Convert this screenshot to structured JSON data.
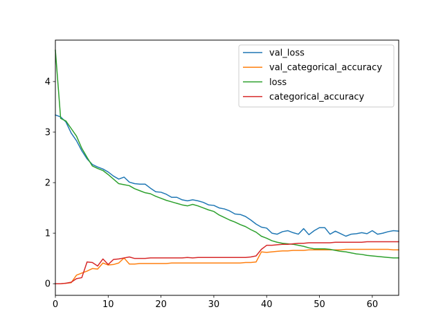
{
  "chart_data": {
    "type": "line",
    "title": "",
    "xlabel": "",
    "ylabel": "",
    "xlim": [
      0,
      65
    ],
    "ylim": [
      -0.23,
      4.82
    ],
    "xticks": [
      0,
      10,
      20,
      30,
      40,
      50,
      60
    ],
    "yticks": [
      0,
      1,
      2,
      3,
      4
    ],
    "grid": false,
    "legend_position": "upper right",
    "x": [
      0,
      1,
      2,
      3,
      4,
      5,
      6,
      7,
      8,
      9,
      10,
      11,
      12,
      13,
      14,
      15,
      16,
      17,
      18,
      19,
      20,
      21,
      22,
      23,
      24,
      25,
      26,
      27,
      28,
      29,
      30,
      31,
      32,
      33,
      34,
      35,
      36,
      37,
      38,
      39,
      40,
      41,
      42,
      43,
      44,
      45,
      46,
      47,
      48,
      49,
      50,
      51,
      52,
      53,
      54,
      55,
      56,
      57,
      58,
      59,
      60,
      61,
      62,
      63,
      64,
      65
    ],
    "series": [
      {
        "name": "val_loss",
        "color": "#1f77b4",
        "values": [
          3.34,
          3.3,
          3.2,
          2.98,
          2.83,
          2.63,
          2.47,
          2.36,
          2.31,
          2.27,
          2.21,
          2.13,
          2.07,
          2.11,
          2.01,
          1.98,
          1.97,
          1.97,
          1.89,
          1.82,
          1.81,
          1.77,
          1.71,
          1.71,
          1.66,
          1.64,
          1.66,
          1.64,
          1.61,
          1.56,
          1.55,
          1.5,
          1.48,
          1.44,
          1.38,
          1.37,
          1.33,
          1.26,
          1.18,
          1.12,
          1.1,
          1.0,
          0.98,
          1.03,
          1.05,
          1.01,
          0.98,
          1.09,
          0.97,
          1.05,
          1.11,
          1.11,
          0.98,
          1.04,
          0.99,
          0.94,
          0.98,
          0.99,
          1.01,
          0.99,
          1.05,
          0.98,
          1.0,
          1.03,
          1.05,
          1.04
        ]
      },
      {
        "name": "val_categorical_accuracy",
        "color": "#ff7f0e",
        "values": [
          0.0,
          0.0,
          0.01,
          0.02,
          0.17,
          0.21,
          0.25,
          0.3,
          0.29,
          0.41,
          0.37,
          0.38,
          0.41,
          0.51,
          0.39,
          0.39,
          0.4,
          0.4,
          0.4,
          0.4,
          0.4,
          0.4,
          0.41,
          0.41,
          0.41,
          0.41,
          0.41,
          0.41,
          0.41,
          0.41,
          0.41,
          0.41,
          0.41,
          0.41,
          0.41,
          0.41,
          0.42,
          0.42,
          0.43,
          0.63,
          0.62,
          0.63,
          0.64,
          0.65,
          0.65,
          0.66,
          0.66,
          0.66,
          0.67,
          0.67,
          0.67,
          0.67,
          0.67,
          0.67,
          0.67,
          0.68,
          0.68,
          0.68,
          0.68,
          0.68,
          0.68,
          0.68,
          0.68,
          0.68,
          0.67,
          0.67
        ]
      },
      {
        "name": "loss",
        "color": "#2ca02c",
        "values": [
          4.62,
          3.27,
          3.22,
          3.07,
          2.92,
          2.68,
          2.5,
          2.33,
          2.28,
          2.24,
          2.16,
          2.07,
          1.98,
          1.96,
          1.94,
          1.88,
          1.84,
          1.8,
          1.78,
          1.73,
          1.69,
          1.65,
          1.62,
          1.59,
          1.56,
          1.54,
          1.57,
          1.54,
          1.5,
          1.46,
          1.43,
          1.36,
          1.31,
          1.26,
          1.22,
          1.17,
          1.13,
          1.07,
          1.02,
          0.94,
          0.9,
          0.85,
          0.82,
          0.8,
          0.79,
          0.78,
          0.76,
          0.74,
          0.71,
          0.69,
          0.69,
          0.69,
          0.68,
          0.66,
          0.64,
          0.63,
          0.61,
          0.59,
          0.58,
          0.56,
          0.55,
          0.54,
          0.53,
          0.52,
          0.51,
          0.51
        ]
      },
      {
        "name": "categorical_accuracy",
        "color": "#d62728",
        "values": [
          0.0,
          0.0,
          0.01,
          0.03,
          0.1,
          0.12,
          0.43,
          0.42,
          0.35,
          0.49,
          0.38,
          0.48,
          0.49,
          0.51,
          0.53,
          0.5,
          0.5,
          0.5,
          0.51,
          0.51,
          0.51,
          0.51,
          0.51,
          0.51,
          0.51,
          0.52,
          0.51,
          0.52,
          0.52,
          0.52,
          0.52,
          0.52,
          0.52,
          0.52,
          0.52,
          0.52,
          0.52,
          0.53,
          0.55,
          0.68,
          0.76,
          0.76,
          0.77,
          0.78,
          0.78,
          0.79,
          0.8,
          0.8,
          0.81,
          0.81,
          0.81,
          0.81,
          0.81,
          0.82,
          0.82,
          0.82,
          0.82,
          0.82,
          0.82,
          0.83,
          0.83,
          0.83,
          0.83,
          0.83,
          0.83,
          0.83
        ]
      }
    ]
  }
}
